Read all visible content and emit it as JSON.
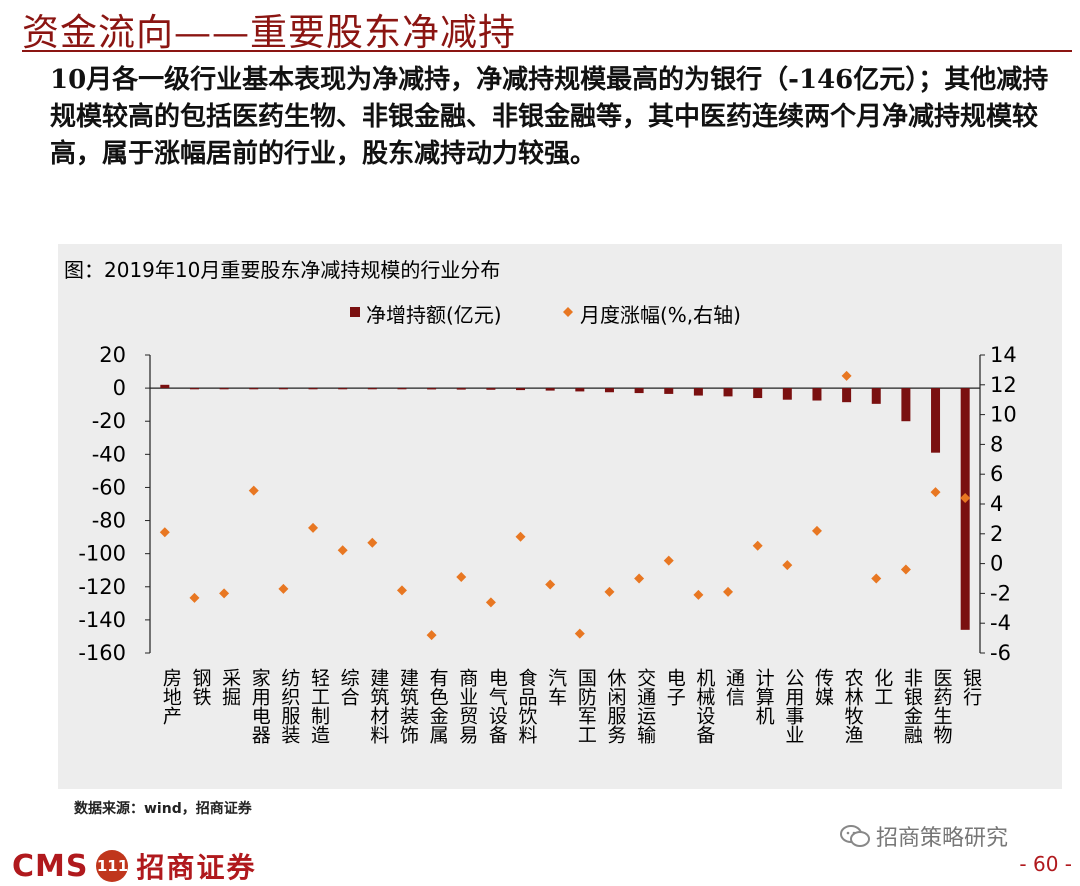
{
  "header": {
    "title": "资金流向——重要股东净减持",
    "body": "10月各一级行业基本表现为净减持，净减持规模最高的为银行（-146亿元）；其他减持规模较高的包括医药生物、非银金融、非银金融等，其中医药连续两个月净减持规模较高，属于涨幅居前的行业，股东减持动力较强。"
  },
  "chart_data": {
    "type": "bar",
    "title": "图：2019年10月重要股东净减持规模的行业分布",
    "categories": [
      "房地产",
      "钢铁",
      "采掘",
      "家用电器",
      "纺织服装",
      "轻工制造",
      "综合",
      "建筑材料",
      "建筑装饰",
      "有色金属",
      "商业贸易",
      "电气设备",
      "食品饮料",
      "汽车",
      "国防军工",
      "休闲服务",
      "交通运输",
      "电子",
      "机械设备",
      "通信",
      "计算机",
      "公用事业",
      "传媒",
      "农林牧渔",
      "化工",
      "非银金融",
      "医药生物",
      "银行"
    ],
    "series": [
      {
        "name": "净增持额(亿元)",
        "type": "bar",
        "axis": "left",
        "color": "#7a1010",
        "values": [
          2,
          0,
          0,
          0,
          -0.3,
          -0.3,
          -0.4,
          -0.5,
          -0.6,
          -0.8,
          -0.9,
          -1,
          -1.2,
          -1.5,
          -2,
          -2.5,
          -3,
          -3.5,
          -4.5,
          -5,
          -6,
          -7,
          -7.5,
          -8.5,
          -9.5,
          -20,
          -39,
          -146
        ]
      },
      {
        "name": "月度涨幅(%,右轴)",
        "type": "scatter",
        "axis": "right",
        "color": "#e87722",
        "values": [
          2.1,
          -2.3,
          -2.0,
          4.9,
          -1.7,
          2.4,
          0.9,
          1.4,
          -1.8,
          -4.8,
          -0.9,
          -2.6,
          1.8,
          -1.4,
          -4.7,
          -1.9,
          -1.0,
          0.2,
          -2.1,
          -1.9,
          1.2,
          -0.1,
          2.2,
          12.6,
          -1.0,
          -0.4,
          4.8,
          4.4
        ]
      }
    ],
    "ylim": [
      -160,
      20
    ],
    "yticks": [
      "20",
      "0",
      "-20",
      "-40",
      "-60",
      "-80",
      "-100",
      "-120",
      "-140",
      "-160"
    ],
    "y2lim": [
      -6,
      14
    ],
    "y2ticks": [
      "14",
      "12",
      "10",
      "8",
      "6",
      "4",
      "2",
      "0",
      "-2",
      "-4",
      "-6"
    ],
    "legend_position": "top-center"
  },
  "footer": {
    "source": "数据来源：wind，招商证券",
    "wechat": "招商策略研究",
    "logo_en": "CMS",
    "logo_badge": "111",
    "logo_cn": "招商证券",
    "page": "- 60 -"
  },
  "colors": {
    "brand": "#8b1512",
    "bar": "#7a1010",
    "marker": "#e87722",
    "panel": "#ededed"
  }
}
